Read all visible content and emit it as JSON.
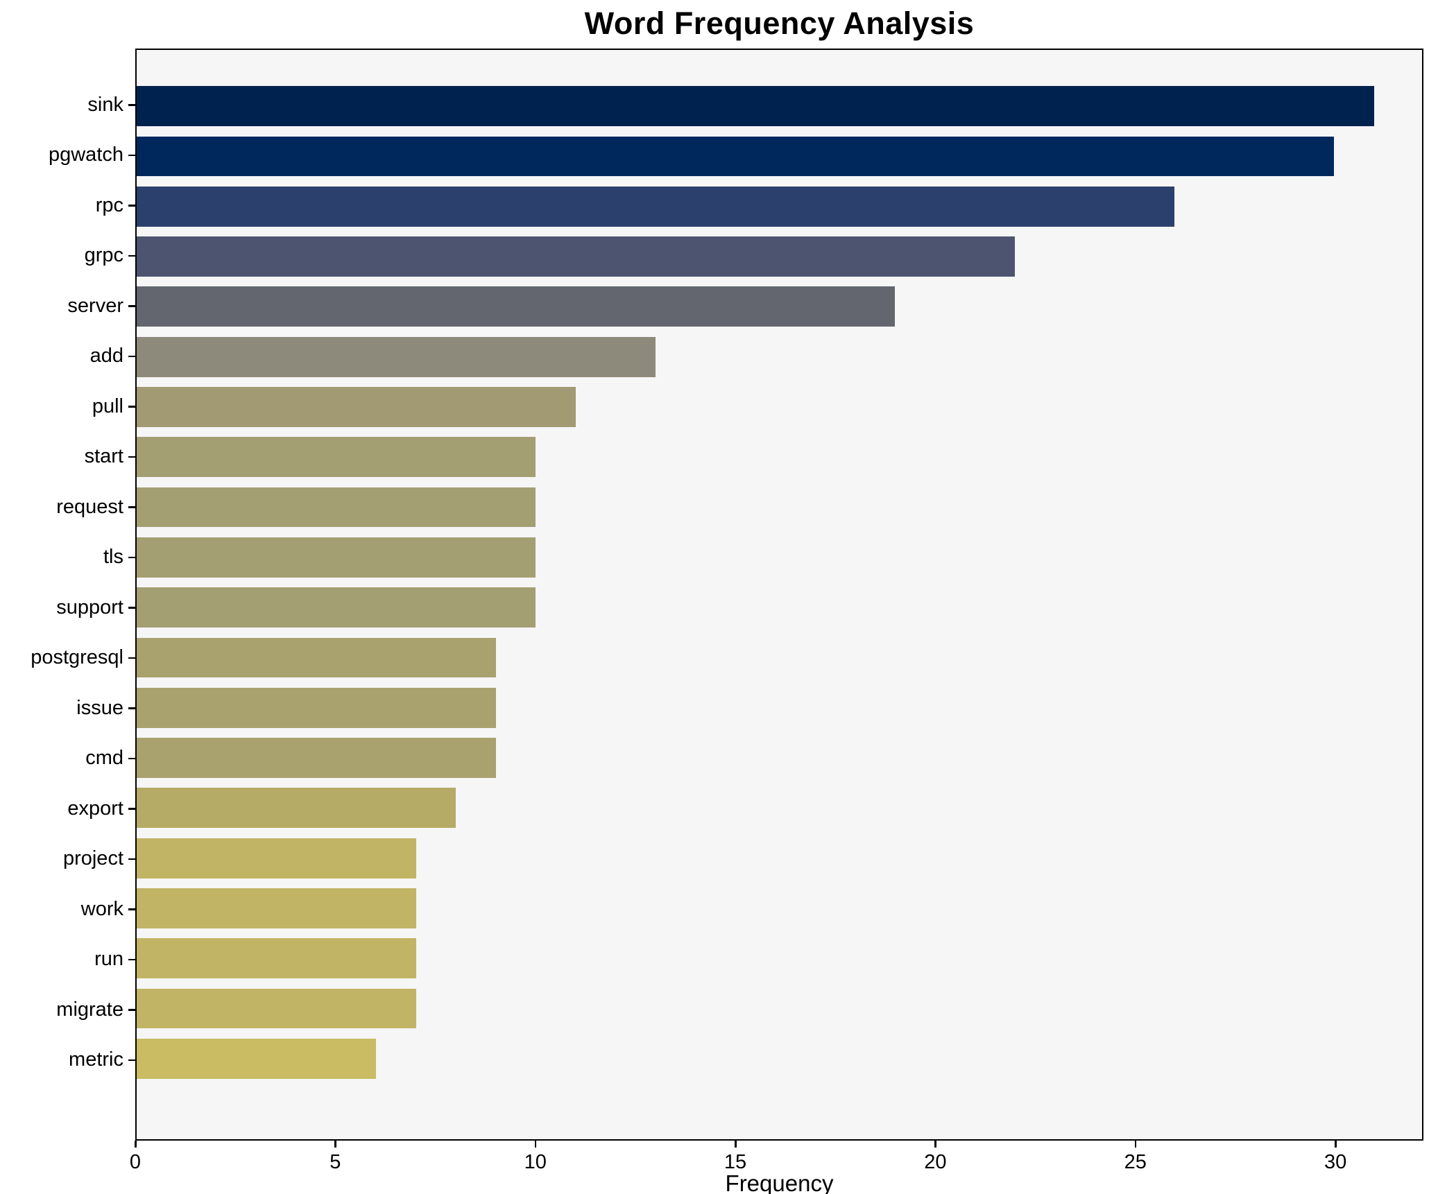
{
  "chart_data": {
    "type": "bar",
    "orientation": "horizontal",
    "title": "Word Frequency Analysis",
    "xlabel": "Frequency",
    "ylabel": "",
    "categories": [
      "sink",
      "pgwatch",
      "rpc",
      "grpc",
      "server",
      "add",
      "pull",
      "start",
      "request",
      "tls",
      "support",
      "postgresql",
      "issue",
      "cmd",
      "export",
      "project",
      "work",
      "run",
      "migrate",
      "metric"
    ],
    "values": [
      31,
      30,
      26,
      22,
      19,
      13,
      11,
      10,
      10,
      10,
      10,
      9,
      9,
      9,
      8,
      7,
      7,
      7,
      7,
      6
    ],
    "bar_colors": [
      "#00224e",
      "#00285d",
      "#2b406c",
      "#4c5470",
      "#63666f",
      "#8e8a7b",
      "#a19a73",
      "#a49e73",
      "#a49e73",
      "#a49e73",
      "#a49e73",
      "#aaa26e",
      "#aaa26e",
      "#aaa26e",
      "#b5ab66",
      "#c1b465",
      "#c1b465",
      "#c1b465",
      "#c1b465",
      "#c9bc63"
    ],
    "xticks": [
      0,
      5,
      10,
      15,
      20,
      25,
      30
    ],
    "xlim": [
      0,
      32.2
    ],
    "grid": false,
    "legend": false,
    "plot_background": "#f6f6f7",
    "figure_background": "#ffffff",
    "axis_color": "#000000"
  }
}
